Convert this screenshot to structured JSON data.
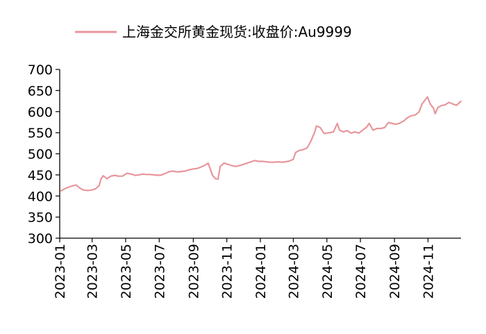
{
  "chart_data": {
    "type": "line",
    "title": "",
    "xlabel": "",
    "ylabel": "",
    "ylim": [
      300,
      700
    ],
    "yticks": [
      300,
      350,
      400,
      450,
      500,
      550,
      600,
      650,
      700
    ],
    "xticks": [
      "2023-01",
      "2023-03",
      "2023-05",
      "2023-07",
      "2023-09",
      "2023-11",
      "2024-01",
      "2024-03",
      "2024-05",
      "2024-07",
      "2024-09",
      "2024-11"
    ],
    "grid": false,
    "legend": "top",
    "series": [
      {
        "name": "上海金交所黄金现货:收盘价:Au9999",
        "color": "#e8969c",
        "points": [
          [
            "2023-01-03",
            412
          ],
          [
            "2023-01-10",
            417
          ],
          [
            "2023-01-17",
            421
          ],
          [
            "2023-01-24",
            424
          ],
          [
            "2023-01-31",
            426
          ],
          [
            "2023-02-07",
            418
          ],
          [
            "2023-02-14",
            414
          ],
          [
            "2023-02-21",
            413
          ],
          [
            "2023-02-28",
            414
          ],
          [
            "2023-03-07",
            417
          ],
          [
            "2023-03-14",
            425
          ],
          [
            "2023-03-17",
            440
          ],
          [
            "2023-03-21",
            448
          ],
          [
            "2023-03-28",
            441
          ],
          [
            "2023-04-04",
            447
          ],
          [
            "2023-04-11",
            449
          ],
          [
            "2023-04-18",
            447
          ],
          [
            "2023-04-25",
            447
          ],
          [
            "2023-05-04",
            454
          ],
          [
            "2023-05-11",
            452
          ],
          [
            "2023-05-18",
            449
          ],
          [
            "2023-05-25",
            450
          ],
          [
            "2023-06-01",
            452
          ],
          [
            "2023-06-08",
            451
          ],
          [
            "2023-06-15",
            451
          ],
          [
            "2023-06-22",
            450
          ],
          [
            "2023-06-29",
            449
          ],
          [
            "2023-07-06",
            450
          ],
          [
            "2023-07-13",
            454
          ],
          [
            "2023-07-20",
            458
          ],
          [
            "2023-07-27",
            459
          ],
          [
            "2023-08-03",
            457
          ],
          [
            "2023-08-10",
            458
          ],
          [
            "2023-08-17",
            459
          ],
          [
            "2023-08-24",
            462
          ],
          [
            "2023-08-31",
            464
          ],
          [
            "2023-09-07",
            465
          ],
          [
            "2023-09-14",
            468
          ],
          [
            "2023-09-21",
            472
          ],
          [
            "2023-09-28",
            478
          ],
          [
            "2023-10-06",
            449
          ],
          [
            "2023-10-11",
            441
          ],
          [
            "2023-10-16",
            440
          ],
          [
            "2023-10-20",
            470
          ],
          [
            "2023-10-27",
            478
          ],
          [
            "2023-11-03",
            475
          ],
          [
            "2023-11-10",
            472
          ],
          [
            "2023-11-17",
            470
          ],
          [
            "2023-11-24",
            472
          ],
          [
            "2023-12-01",
            475
          ],
          [
            "2023-12-08",
            478
          ],
          [
            "2023-12-15",
            481
          ],
          [
            "2023-12-22",
            484
          ],
          [
            "2023-12-29",
            482
          ],
          [
            "2024-01-05",
            482
          ],
          [
            "2024-01-12",
            481
          ],
          [
            "2024-01-19",
            480
          ],
          [
            "2024-01-26",
            480
          ],
          [
            "2024-02-02",
            481
          ],
          [
            "2024-02-09",
            480
          ],
          [
            "2024-02-16",
            481
          ],
          [
            "2024-02-23",
            483
          ],
          [
            "2024-03-01",
            487
          ],
          [
            "2024-03-05",
            503
          ],
          [
            "2024-03-12",
            508
          ],
          [
            "2024-03-19",
            510
          ],
          [
            "2024-03-26",
            514
          ],
          [
            "2024-04-02",
            530
          ],
          [
            "2024-04-09",
            552
          ],
          [
            "2024-04-12",
            566
          ],
          [
            "2024-04-19",
            562
          ],
          [
            "2024-04-26",
            548
          ],
          [
            "2024-05-06",
            550
          ],
          [
            "2024-05-13",
            552
          ],
          [
            "2024-05-20",
            572
          ],
          [
            "2024-05-24",
            556
          ],
          [
            "2024-05-31",
            552
          ],
          [
            "2024-06-07",
            555
          ],
          [
            "2024-06-14",
            549
          ],
          [
            "2024-06-21",
            552
          ],
          [
            "2024-06-28",
            549
          ],
          [
            "2024-07-05",
            556
          ],
          [
            "2024-07-12",
            563
          ],
          [
            "2024-07-17",
            572
          ],
          [
            "2024-07-24",
            556
          ],
          [
            "2024-07-31",
            560
          ],
          [
            "2024-08-07",
            560
          ],
          [
            "2024-08-14",
            562
          ],
          [
            "2024-08-21",
            574
          ],
          [
            "2024-08-28",
            572
          ],
          [
            "2024-09-04",
            570
          ],
          [
            "2024-09-11",
            573
          ],
          [
            "2024-09-18",
            578
          ],
          [
            "2024-09-25",
            586
          ],
          [
            "2024-10-01",
            590
          ],
          [
            "2024-10-09",
            592
          ],
          [
            "2024-10-16",
            600
          ],
          [
            "2024-10-21",
            618
          ],
          [
            "2024-10-25",
            625
          ],
          [
            "2024-10-31",
            635
          ],
          [
            "2024-11-05",
            618
          ],
          [
            "2024-11-11",
            608
          ],
          [
            "2024-11-14",
            595
          ],
          [
            "2024-11-19",
            610
          ],
          [
            "2024-11-25",
            614
          ],
          [
            "2024-12-02",
            616
          ],
          [
            "2024-12-09",
            622
          ],
          [
            "2024-12-16",
            618
          ],
          [
            "2024-12-23",
            615
          ],
          [
            "2024-12-31",
            625
          ]
        ]
      }
    ]
  }
}
